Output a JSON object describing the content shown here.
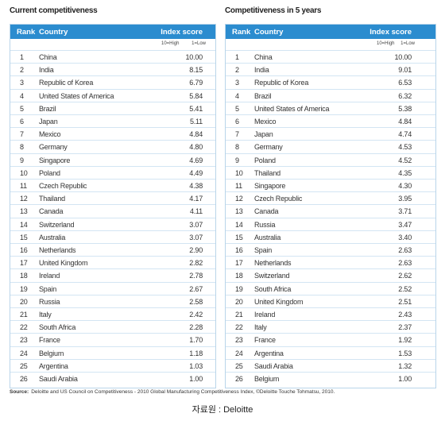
{
  "tables": [
    {
      "title": "Current competitiveness",
      "columns": [
        "Rank",
        "Country",
        "Index score"
      ],
      "scale": [
        "10=High",
        "1=Low"
      ],
      "rows": [
        [
          "1",
          "China",
          "10.00"
        ],
        [
          "2",
          "India",
          "8.15"
        ],
        [
          "3",
          "Republic of Korea",
          "6.79"
        ],
        [
          "4",
          "United States of America",
          "5.84"
        ],
        [
          "5",
          "Brazil",
          "5.41"
        ],
        [
          "6",
          "Japan",
          "5.11"
        ],
        [
          "7",
          "Mexico",
          "4.84"
        ],
        [
          "8",
          "Germany",
          "4.80"
        ],
        [
          "9",
          "Singapore",
          "4.69"
        ],
        [
          "10",
          "Poland",
          "4.49"
        ],
        [
          "11",
          "Czech Republic",
          "4.38"
        ],
        [
          "12",
          "Thailand",
          "4.17"
        ],
        [
          "13",
          "Canada",
          "4.11"
        ],
        [
          "14",
          "Switzerland",
          "3.07"
        ],
        [
          "15",
          "Australia",
          "3.07"
        ],
        [
          "16",
          "Netherlands",
          "2.90"
        ],
        [
          "17",
          "United Kingdom",
          "2.82"
        ],
        [
          "18",
          "Ireland",
          "2.78"
        ],
        [
          "19",
          "Spain",
          "2.67"
        ],
        [
          "20",
          "Russia",
          "2.58"
        ],
        [
          "21",
          "Italy",
          "2.42"
        ],
        [
          "22",
          "South Africa",
          "2.28"
        ],
        [
          "23",
          "France",
          "1.70"
        ],
        [
          "24",
          "Belgium",
          "1.18"
        ],
        [
          "25",
          "Argentina",
          "1.03"
        ],
        [
          "26",
          "Saudi Arabia",
          "1.00"
        ]
      ]
    },
    {
      "title": "Competitiveness in 5 years",
      "columns": [
        "Rank",
        "Country",
        "Index score"
      ],
      "scale": [
        "10=High",
        "1=Low"
      ],
      "rows": [
        [
          "1",
          "China",
          "10.00"
        ],
        [
          "2",
          "India",
          "9.01"
        ],
        [
          "3",
          "Republic of Korea",
          "6.53"
        ],
        [
          "4",
          "Brazil",
          "6.32"
        ],
        [
          "5",
          "United States of America",
          "5.38"
        ],
        [
          "6",
          "Mexico",
          "4.84"
        ],
        [
          "7",
          "Japan",
          "4.74"
        ],
        [
          "8",
          "Germany",
          "4.53"
        ],
        [
          "9",
          "Poland",
          "4.52"
        ],
        [
          "10",
          "Thailand",
          "4.35"
        ],
        [
          "11",
          "Singapore",
          "4.30"
        ],
        [
          "12",
          "Czech Republic",
          "3.95"
        ],
        [
          "13",
          "Canada",
          "3.71"
        ],
        [
          "14",
          "Russia",
          "3.47"
        ],
        [
          "15",
          "Australia",
          "3.40"
        ],
        [
          "16",
          "Spain",
          "2.63"
        ],
        [
          "17",
          "Netherlands",
          "2.63"
        ],
        [
          "18",
          "Switzerland",
          "2.62"
        ],
        [
          "19",
          "South Africa",
          "2.52"
        ],
        [
          "20",
          "United Kingdom",
          "2.51"
        ],
        [
          "21",
          "Ireland",
          "2.43"
        ],
        [
          "22",
          "Italy",
          "2.37"
        ],
        [
          "23",
          "France",
          "1.92"
        ],
        [
          "24",
          "Argentina",
          "1.53"
        ],
        [
          "25",
          "Saudi Arabia",
          "1.32"
        ],
        [
          "26",
          "Belgium",
          "1.00"
        ]
      ]
    }
  ],
  "source": {
    "label": "Source:",
    "text": "Deloitte and US Council on Competitiveness - 2010 Global Manufacturing Competitiveness Index, ©Deloitte Touche Tohmatsu, 2010."
  },
  "caption": "자료원 : Deloitte"
}
